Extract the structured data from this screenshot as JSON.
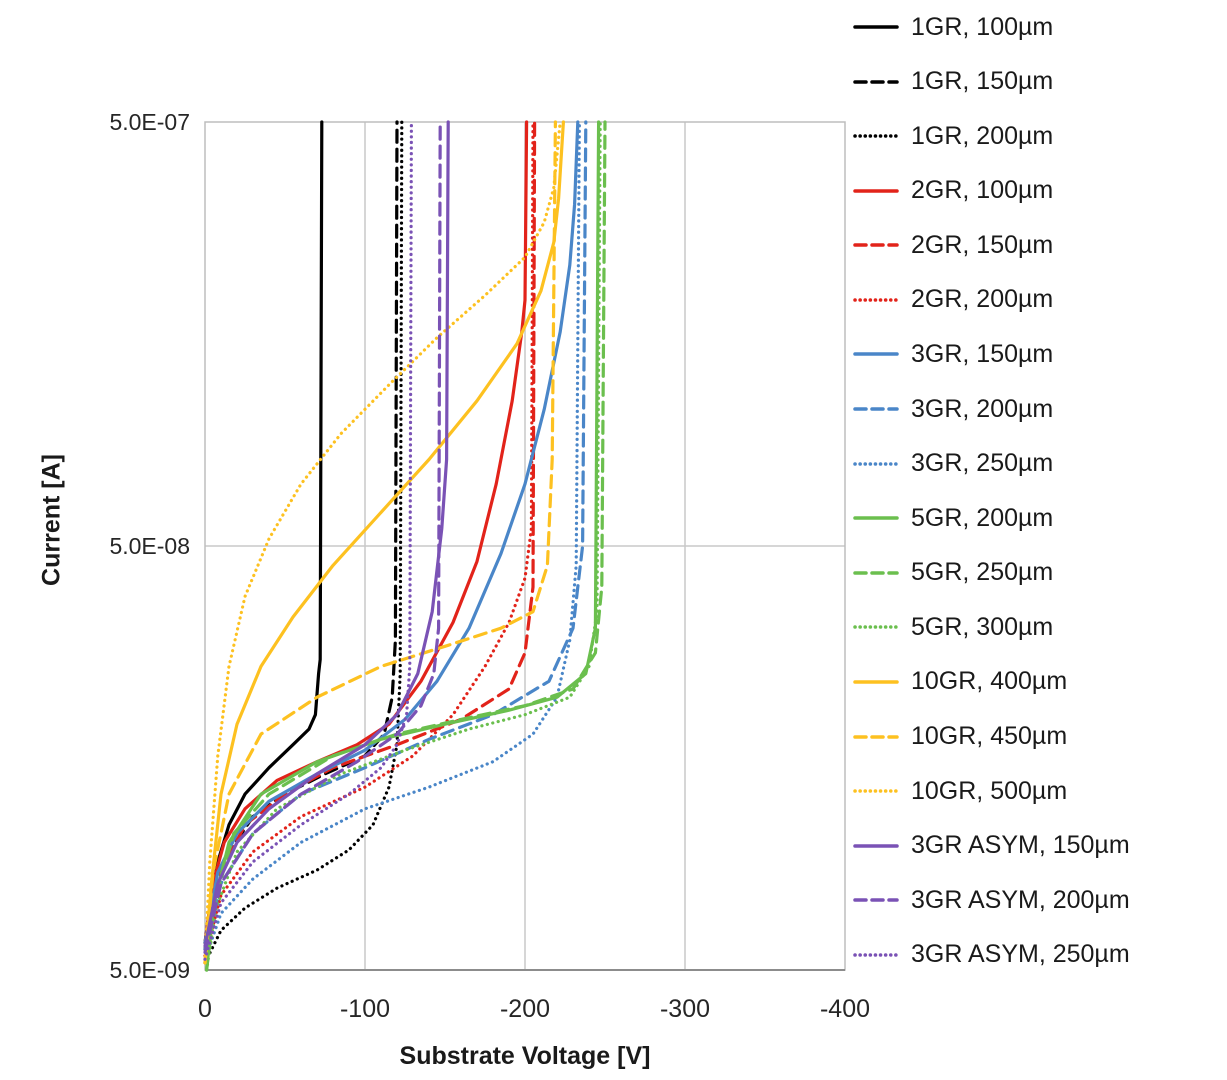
{
  "chart_data": {
    "type": "line",
    "title": "",
    "xlabel": "Substrate Voltage [V]",
    "ylabel": "Current [A]",
    "x_axis": {
      "max": -400,
      "min": 0,
      "ticks": [
        0,
        -100,
        -200,
        -300,
        -400
      ],
      "tick_labels": [
        "0",
        "-100",
        "-200",
        "-300",
        "-400"
      ]
    },
    "y_axis": {
      "scale": "log",
      "min": 5e-09,
      "max": 5e-07,
      "ticks": [
        5e-07,
        5e-08,
        5e-09
      ],
      "tick_labels": [
        "5.0E-07",
        "5.0E-08",
        "5.0E-09"
      ]
    },
    "grid": {
      "vertical": [
        -100,
        -200,
        -300
      ],
      "horizontal": [
        5e-08
      ]
    },
    "legend_position": "right",
    "style_hints": {
      "grid_color": "#c9c9c9",
      "border_color": "#bdbdbd",
      "axis_color": "#8c8c8c",
      "text_color": "#262626",
      "background": "#ffffff"
    },
    "series": [
      {
        "name": "1GR, 100µm",
        "color": "#000000",
        "style": "solid",
        "breakdown_v": -73,
        "points": [
          [
            0,
            5.8e-09
          ],
          [
            -3,
            7e-09
          ],
          [
            -8,
            9e-09
          ],
          [
            -15,
            1.1e-08
          ],
          [
            -25,
            1.3e-08
          ],
          [
            -40,
            1.5e-08
          ],
          [
            -55,
            1.7e-08
          ],
          [
            -65,
            1.85e-08
          ],
          [
            -69,
            2e-08
          ],
          [
            -71,
            2.5e-08
          ],
          [
            -72,
            2.7e-08
          ],
          [
            -73,
            5e-07
          ]
        ]
      },
      {
        "name": "1GR, 150µm",
        "color": "#000000",
        "style": "dashed",
        "breakdown_v": -120,
        "points": [
          [
            0,
            5.6e-09
          ],
          [
            -5,
            7.5e-09
          ],
          [
            -15,
            9.5e-09
          ],
          [
            -30,
            1.15e-08
          ],
          [
            -50,
            1.3e-08
          ],
          [
            -75,
            1.45e-08
          ],
          [
            -100,
            1.6e-08
          ],
          [
            -112,
            1.8e-08
          ],
          [
            -117,
            2.2e-08
          ],
          [
            -119,
            3e-08
          ],
          [
            -120,
            5e-07
          ]
        ]
      },
      {
        "name": "1GR, 200µm",
        "color": "#000000",
        "style": "dotted",
        "breakdown_v": -123,
        "points": [
          [
            0,
            5.2e-09
          ],
          [
            -10,
            6.2e-09
          ],
          [
            -25,
            7e-09
          ],
          [
            -45,
            7.8e-09
          ],
          [
            -70,
            8.6e-09
          ],
          [
            -90,
            9.6e-09
          ],
          [
            -105,
            1.1e-08
          ],
          [
            -115,
            1.35e-08
          ],
          [
            -120,
            1.7e-08
          ],
          [
            -122,
            2.5e-08
          ],
          [
            -123,
            5e-07
          ]
        ]
      },
      {
        "name": "2GR, 100µm",
        "color": "#e2231a",
        "style": "solid",
        "breakdown_v": -201,
        "points": [
          [
            0,
            5.8e-09
          ],
          [
            -5,
            8e-09
          ],
          [
            -12,
            1e-08
          ],
          [
            -25,
            1.2e-08
          ],
          [
            -45,
            1.4e-08
          ],
          [
            -70,
            1.55e-08
          ],
          [
            -95,
            1.7e-08
          ],
          [
            -115,
            1.9e-08
          ],
          [
            -135,
            2.4e-08
          ],
          [
            -155,
            3.3e-08
          ],
          [
            -170,
            4.6e-08
          ],
          [
            -182,
            7e-08
          ],
          [
            -192,
            1.1e-07
          ],
          [
            -198,
            1.6e-07
          ],
          [
            -200,
            1.9e-07
          ],
          [
            -201,
            5e-07
          ]
        ]
      },
      {
        "name": "2GR, 150µm",
        "color": "#e2231a",
        "style": "dashed",
        "breakdown_v": -206,
        "points": [
          [
            0,
            5.6e-09
          ],
          [
            -10,
            8.5e-09
          ],
          [
            -25,
            1.1e-08
          ],
          [
            -50,
            1.3e-08
          ],
          [
            -80,
            1.5e-08
          ],
          [
            -120,
            1.7e-08
          ],
          [
            -160,
            1.95e-08
          ],
          [
            -190,
            2.3e-08
          ],
          [
            -200,
            2.8e-08
          ],
          [
            -205,
            4e-08
          ],
          [
            -206,
            5e-07
          ]
        ]
      },
      {
        "name": "2GR, 200µm",
        "color": "#e2231a",
        "style": "dotted",
        "breakdown_v": -205,
        "points": [
          [
            0,
            5.4e-09
          ],
          [
            -10,
            7.5e-09
          ],
          [
            -30,
            9.5e-09
          ],
          [
            -60,
            1.15e-08
          ],
          [
            -100,
            1.35e-08
          ],
          [
            -130,
            1.6e-08
          ],
          [
            -155,
            2e-08
          ],
          [
            -175,
            2.6e-08
          ],
          [
            -190,
            3.3e-08
          ],
          [
            -200,
            4.2e-08
          ],
          [
            -204,
            5.5e-08
          ],
          [
            -205,
            5e-07
          ]
        ]
      },
      {
        "name": "3GR, 150µm",
        "color": "#4a86c8",
        "style": "solid",
        "breakdown_v": -233,
        "points": [
          [
            0,
            5.8e-09
          ],
          [
            -8,
            8.5e-09
          ],
          [
            -20,
            1.05e-08
          ],
          [
            -40,
            1.25e-08
          ],
          [
            -70,
            1.45e-08
          ],
          [
            -100,
            1.65e-08
          ],
          [
            -125,
            1.95e-08
          ],
          [
            -145,
            2.4e-08
          ],
          [
            -165,
            3.2e-08
          ],
          [
            -185,
            4.8e-08
          ],
          [
            -200,
            7e-08
          ],
          [
            -212,
            1.05e-07
          ],
          [
            -222,
            1.6e-07
          ],
          [
            -228,
            2.3e-07
          ],
          [
            -231,
            3.2e-07
          ],
          [
            -233,
            5e-07
          ]
        ]
      },
      {
        "name": "3GR, 200µm",
        "color": "#4a86c8",
        "style": "dashed",
        "breakdown_v": -238,
        "points": [
          [
            0,
            5.6e-09
          ],
          [
            -10,
            8e-09
          ],
          [
            -30,
            1.05e-08
          ],
          [
            -60,
            1.3e-08
          ],
          [
            -100,
            1.5e-08
          ],
          [
            -140,
            1.75e-08
          ],
          [
            -180,
            2e-08
          ],
          [
            -215,
            2.4e-08
          ],
          [
            -230,
            3.2e-08
          ],
          [
            -236,
            5e-08
          ],
          [
            -238,
            5e-07
          ]
        ]
      },
      {
        "name": "3GR, 250µm",
        "color": "#4a86c8",
        "style": "dotted",
        "breakdown_v": -234,
        "points": [
          [
            0,
            5.3e-09
          ],
          [
            -10,
            6.8e-09
          ],
          [
            -30,
            8.2e-09
          ],
          [
            -60,
            1e-08
          ],
          [
            -100,
            1.2e-08
          ],
          [
            -140,
            1.35e-08
          ],
          [
            -180,
            1.55e-08
          ],
          [
            -205,
            1.8e-08
          ],
          [
            -220,
            2.2e-08
          ],
          [
            -228,
            3e-08
          ],
          [
            -232,
            4.5e-08
          ],
          [
            -234,
            5e-07
          ]
        ]
      },
      {
        "name": "5GR, 200µm",
        "color": "#6bbf4e",
        "style": "solid",
        "breakdown_v": -246,
        "points": [
          [
            -1,
            5e-09
          ],
          [
            -5,
            7e-09
          ],
          [
            -15,
            1e-08
          ],
          [
            -35,
            1.3e-08
          ],
          [
            -70,
            1.55e-08
          ],
          [
            -110,
            1.75e-08
          ],
          [
            -150,
            1.9e-08
          ],
          [
            -190,
            2.05e-08
          ],
          [
            -220,
            2.2e-08
          ],
          [
            -238,
            2.5e-08
          ],
          [
            -244,
            3.2e-08
          ],
          [
            -246,
            5e-07
          ]
        ]
      },
      {
        "name": "5GR, 250µm",
        "color": "#6bbf4e",
        "style": "dashed",
        "breakdown_v": -250,
        "points": [
          [
            -1,
            5e-09
          ],
          [
            -6,
            7.2e-09
          ],
          [
            -18,
            1.05e-08
          ],
          [
            -40,
            1.3e-08
          ],
          [
            -80,
            1.6e-08
          ],
          [
            -120,
            1.8e-08
          ],
          [
            -160,
            1.95e-08
          ],
          [
            -200,
            2.1e-08
          ],
          [
            -230,
            2.3e-08
          ],
          [
            -244,
            2.8e-08
          ],
          [
            -248,
            4e-08
          ],
          [
            -250,
            5e-07
          ]
        ]
      },
      {
        "name": "5GR, 300µm",
        "color": "#6bbf4e",
        "style": "dotted",
        "breakdown_v": -247,
        "points": [
          [
            -1,
            5e-09
          ],
          [
            -7,
            7e-09
          ],
          [
            -20,
            9.5e-09
          ],
          [
            -45,
            1.2e-08
          ],
          [
            -85,
            1.45e-08
          ],
          [
            -125,
            1.65e-08
          ],
          [
            -165,
            1.85e-08
          ],
          [
            -200,
            2e-08
          ],
          [
            -228,
            2.2e-08
          ],
          [
            -240,
            2.6e-08
          ],
          [
            -245,
            3.5e-08
          ],
          [
            -247,
            5e-07
          ]
        ]
      },
      {
        "name": "10GR, 400µm",
        "color": "#fdc120",
        "style": "solid",
        "breakdown_v": -224,
        "points": [
          [
            0,
            5.2e-09
          ],
          [
            -4,
            8e-09
          ],
          [
            -10,
            1.3e-08
          ],
          [
            -20,
            1.9e-08
          ],
          [
            -35,
            2.6e-08
          ],
          [
            -55,
            3.4e-08
          ],
          [
            -80,
            4.5e-08
          ],
          [
            -110,
            6e-08
          ],
          [
            -140,
            8e-08
          ],
          [
            -170,
            1.1e-07
          ],
          [
            -195,
            1.5e-07
          ],
          [
            -210,
            2e-07
          ],
          [
            -218,
            2.6e-07
          ],
          [
            -221,
            3.3e-07
          ],
          [
            -224,
            5e-07
          ]
        ]
      },
      {
        "name": "10GR, 450µm",
        "color": "#fdc120",
        "style": "dashed",
        "breakdown_v": -219,
        "points": [
          [
            0,
            5.2e-09
          ],
          [
            -5,
            8.5e-09
          ],
          [
            -15,
            1.3e-08
          ],
          [
            -35,
            1.8e-08
          ],
          [
            -70,
            2.2e-08
          ],
          [
            -110,
            2.6e-08
          ],
          [
            -150,
            2.9e-08
          ],
          [
            -185,
            3.2e-08
          ],
          [
            -205,
            3.5e-08
          ],
          [
            -214,
            4.5e-08
          ],
          [
            -217,
            8e-08
          ],
          [
            -219,
            5e-07
          ]
        ]
      },
      {
        "name": "10GR, 500µm",
        "color": "#fdc120",
        "style": "dotted",
        "breakdown_v": -222,
        "points": [
          [
            0,
            5.2e-09
          ],
          [
            -3,
            9e-09
          ],
          [
            -8,
            1.6e-08
          ],
          [
            -15,
            2.6e-08
          ],
          [
            -25,
            3.8e-08
          ],
          [
            -40,
            5.2e-08
          ],
          [
            -60,
            7e-08
          ],
          [
            -85,
            9.2e-08
          ],
          [
            -115,
            1.2e-07
          ],
          [
            -145,
            1.55e-07
          ],
          [
            -175,
            1.95e-07
          ],
          [
            -200,
            2.4e-07
          ],
          [
            -212,
            2.9e-07
          ],
          [
            -218,
            3.5e-07
          ],
          [
            -222,
            5e-07
          ]
        ]
      },
      {
        "name": "3GR ASYM, 150µm",
        "color": "#7a52b5",
        "style": "solid",
        "breakdown_v": -152,
        "points": [
          [
            0,
            5.7e-09
          ],
          [
            -8,
            8e-09
          ],
          [
            -20,
            1e-08
          ],
          [
            -40,
            1.2e-08
          ],
          [
            -70,
            1.45e-08
          ],
          [
            -100,
            1.7e-08
          ],
          [
            -120,
            2e-08
          ],
          [
            -133,
            2.5e-08
          ],
          [
            -142,
            3.5e-08
          ],
          [
            -148,
            5.5e-08
          ],
          [
            -151,
            8e-08
          ],
          [
            -152,
            5e-07
          ]
        ]
      },
      {
        "name": "3GR ASYM, 200µm",
        "color": "#7a52b5",
        "style": "dashed",
        "breakdown_v": -147,
        "points": [
          [
            0,
            5.5e-09
          ],
          [
            -10,
            8e-09
          ],
          [
            -30,
            1.05e-08
          ],
          [
            -60,
            1.3e-08
          ],
          [
            -95,
            1.55e-08
          ],
          [
            -120,
            1.8e-08
          ],
          [
            -135,
            2.1e-08
          ],
          [
            -143,
            2.5e-08
          ],
          [
            -146,
            3.2e-08
          ],
          [
            -147,
            5e-07
          ]
        ]
      },
      {
        "name": "3GR ASYM, 250µm",
        "color": "#7a52b5",
        "style": "dotted",
        "breakdown_v": -129,
        "points": [
          [
            0,
            5.3e-09
          ],
          [
            -10,
            7.2e-09
          ],
          [
            -30,
            9e-09
          ],
          [
            -60,
            1.1e-08
          ],
          [
            -90,
            1.3e-08
          ],
          [
            -110,
            1.5e-08
          ],
          [
            -120,
            1.7e-08
          ],
          [
            -126,
            2e-08
          ],
          [
            -128,
            2.6e-08
          ],
          [
            -129,
            5e-07
          ]
        ]
      }
    ]
  }
}
